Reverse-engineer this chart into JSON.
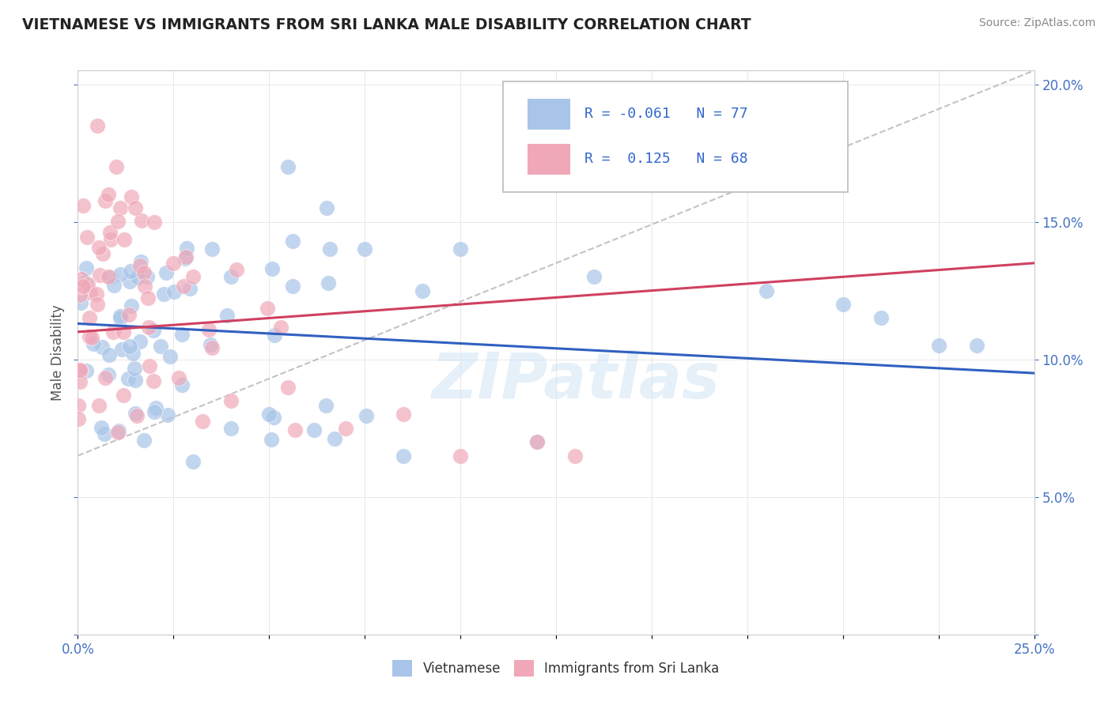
{
  "title": "VIETNAMESE VS IMMIGRANTS FROM SRI LANKA MALE DISABILITY CORRELATION CHART",
  "source": "Source: ZipAtlas.com",
  "ylabel": "Male Disability",
  "legend1_label": "Vietnamese",
  "legend2_label": "Immigrants from Sri Lanka",
  "r1": -0.061,
  "n1": 77,
  "r2": 0.125,
  "n2": 68,
  "blue_color": "#a8c4e8",
  "pink_color": "#f0a8b8",
  "blue_line_color": "#3060c0",
  "pink_line_color": "#d04060",
  "watermark": "ZIPatlas",
  "xmin": 0.0,
  "xmax": 0.25,
  "ymin": 0.0,
  "ymax": 0.205,
  "viet_line_y0": 0.113,
  "viet_line_y1": 0.095,
  "sri_line_y0": 0.11,
  "sri_line_y1": 0.135,
  "dash_line_x0": 0.0,
  "dash_line_y0": 0.065,
  "dash_line_x1": 0.25,
  "dash_line_y1": 0.205
}
